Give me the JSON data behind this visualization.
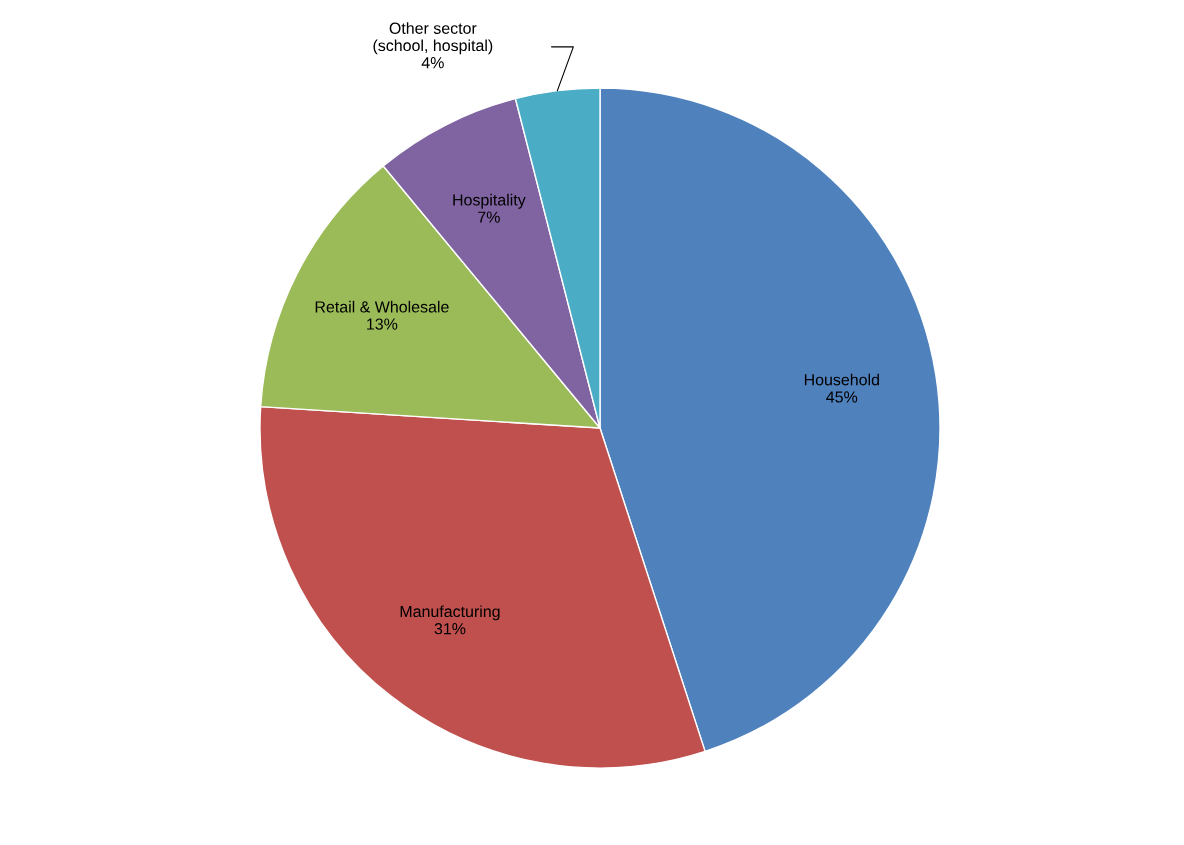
{
  "chart_data": {
    "type": "pie",
    "categories": [
      "Household",
      "Manufacturing",
      "Retail & Wholesale",
      "Hospitality",
      "Other sector\n(school, hospital)"
    ],
    "values": [
      45,
      31,
      13,
      7,
      4
    ],
    "colors": [
      "#4f81bd",
      "#c0504d",
      "#9bbb59",
      "#8064a2",
      "#4bacc6"
    ],
    "value_labels": [
      "45%",
      "31%",
      "13%",
      "7%",
      "4%"
    ],
    "legend": false
  }
}
